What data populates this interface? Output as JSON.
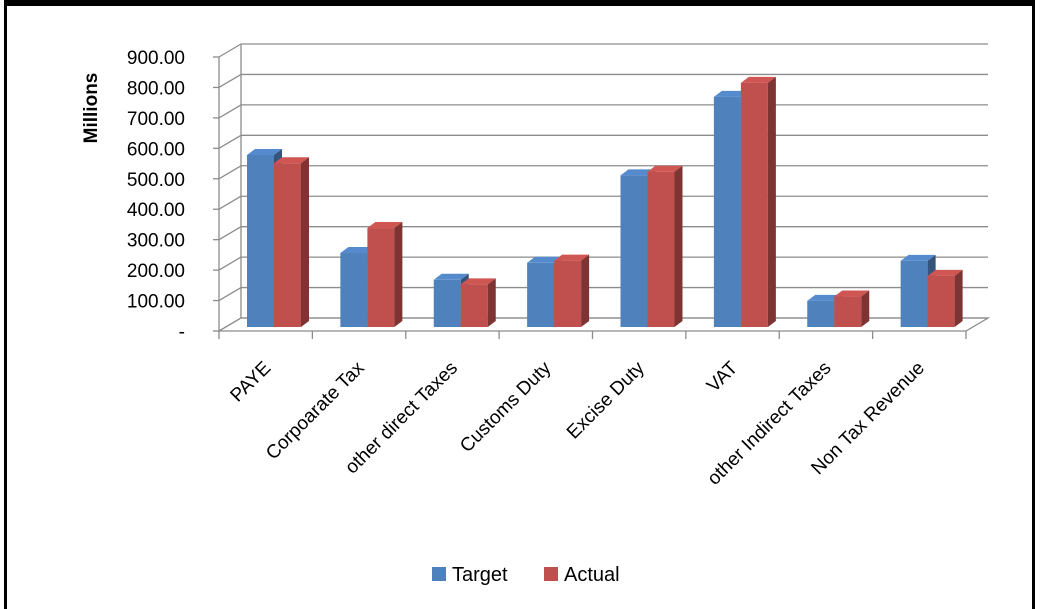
{
  "chart_data": {
    "type": "bar",
    "title": "",
    "xlabel": "",
    "ylabel": "Millions",
    "ylim": [
      0,
      900
    ],
    "yticks": [
      "-",
      "100.00",
      "200.00",
      "300.00",
      "400.00",
      "500.00",
      "600.00",
      "700.00",
      "800.00",
      "900.00"
    ],
    "categories": [
      "PAYE",
      "Corpoarate Tax",
      "other direct Taxes",
      "Customs Duty",
      "Excise Duty",
      "VAT",
      "other Indirect Taxes",
      "Non Tax Revenue"
    ],
    "series": [
      {
        "name": "Target",
        "color": "#4F81BD",
        "values": [
          565,
          243,
          155,
          211,
          498,
          756,
          86,
          217
        ]
      },
      {
        "name": "Actual",
        "color": "#C0504D",
        "values": [
          538,
          325,
          140,
          218,
          510,
          802,
          100,
          168
        ]
      }
    ],
    "grid": true,
    "legend": "bottom",
    "style": "3d-clustered"
  }
}
